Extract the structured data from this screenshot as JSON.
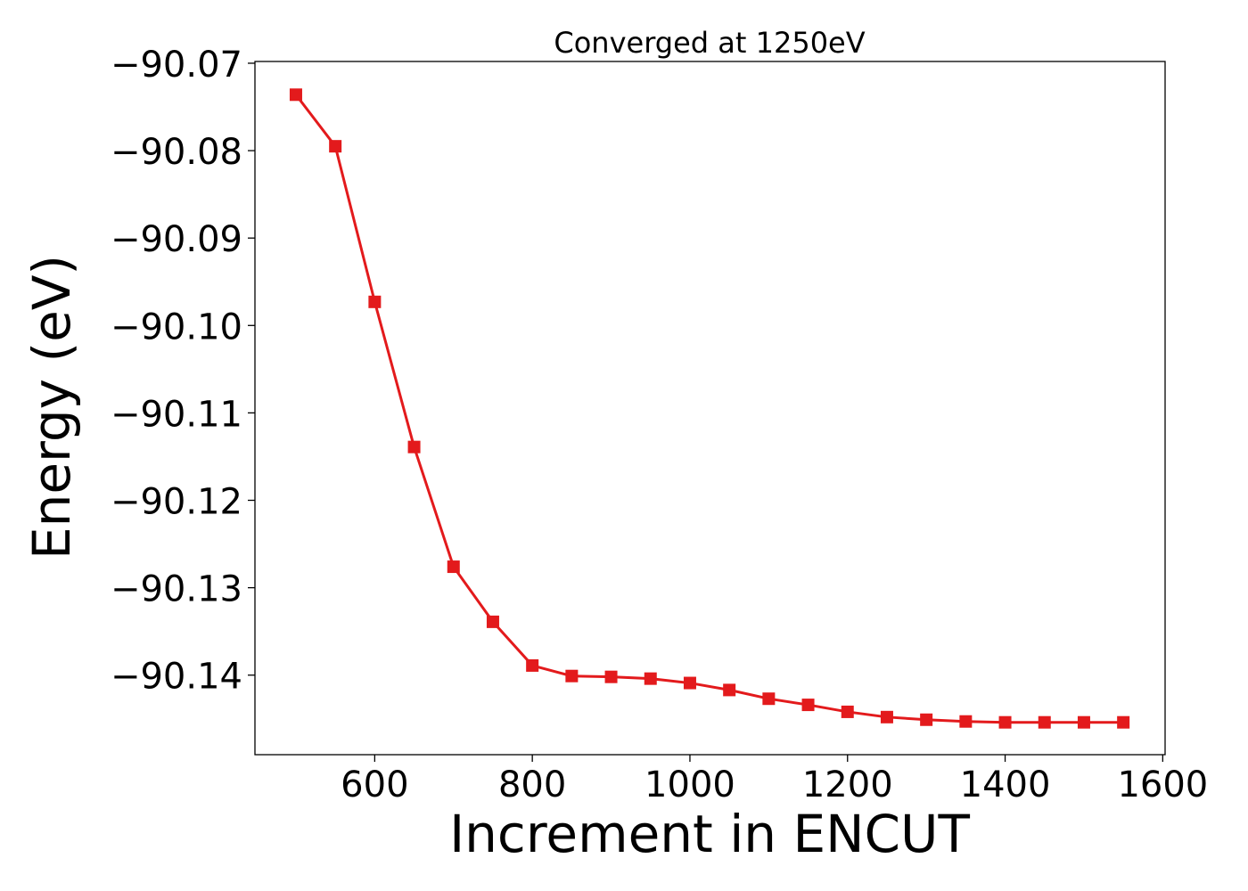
{
  "chart_data": {
    "type": "line",
    "title": "Converged at 1250eV",
    "xlabel": "Increment in ENCUT",
    "ylabel": "Energy (eV)",
    "xlim": [
      448,
      1603
    ],
    "ylim": [
      -90.1491,
      -90.0698
    ],
    "x_ticks": [
      600,
      800,
      1000,
      1200,
      1400,
      1600
    ],
    "x_tick_labels": [
      "600",
      "800",
      "1000",
      "1200",
      "1400",
      "1600"
    ],
    "y_ticks": [
      -90.07,
      -90.08,
      -90.09,
      -90.1,
      -90.11,
      -90.12,
      -90.13,
      -90.14
    ],
    "y_tick_labels": [
      "−90.07",
      "−90.08",
      "−90.09",
      "−90.10",
      "−90.11",
      "−90.12",
      "−90.13",
      "−90.14"
    ],
    "grid": false,
    "legend": "none",
    "series": [
      {
        "color": "#e31a1c",
        "marker": "square",
        "x": [
          500,
          550,
          600,
          650,
          700,
          750,
          800,
          850,
          900,
          950,
          1000,
          1050,
          1100,
          1150,
          1200,
          1250,
          1300,
          1350,
          1400,
          1450,
          1500,
          1550
        ],
        "y": [
          -90.0736,
          -90.0795,
          -90.0973,
          -90.1139,
          -90.1276,
          -90.1339,
          -90.1389,
          -90.1401,
          -90.1402,
          -90.1404,
          -90.1409,
          -90.1417,
          -90.1427,
          -90.1434,
          -90.1442,
          -90.1448,
          -90.1451,
          -90.1453,
          -90.1454,
          -90.1454,
          -90.1454,
          -90.1454
        ]
      }
    ]
  }
}
